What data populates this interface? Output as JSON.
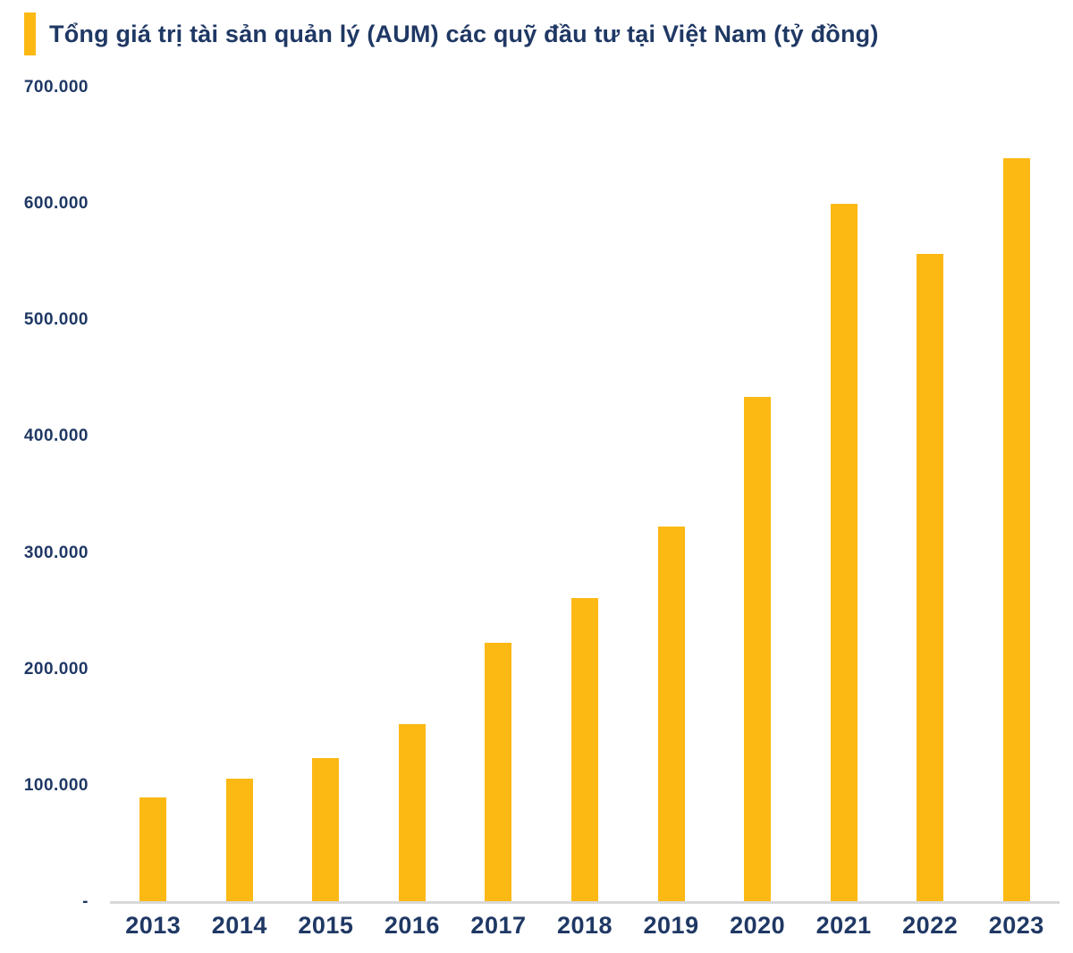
{
  "title": "Tổng giá trị tài sản quản lý (AUM) các quỹ đầu tư tại Việt Nam (tỷ đồng)",
  "colors": {
    "bar": "#FCB813",
    "accent_bar": "#FCB813",
    "text_navy": "#1F3864",
    "axis_line": "#D8D8D8"
  },
  "chart_data": {
    "type": "bar",
    "title": "Tổng giá trị tài sản quản lý (AUM) các quỹ đầu tư tại Việt Nam (tỷ đồng)",
    "categories": [
      "2013",
      "2014",
      "2015",
      "2016",
      "2017",
      "2018",
      "2019",
      "2020",
      "2021",
      "2022",
      "2023"
    ],
    "values": [
      90000,
      106000,
      124000,
      153000,
      223000,
      261000,
      323000,
      434000,
      600000,
      557000,
      639000
    ],
    "xlabel": "",
    "ylabel": "",
    "ylim": [
      0,
      700000
    ],
    "ytick_step": 100000,
    "yticks": [
      {
        "value": 0,
        "label": "-"
      },
      {
        "value": 100000,
        "label": "100.000"
      },
      {
        "value": 200000,
        "label": "200.000"
      },
      {
        "value": 300000,
        "label": "300.000"
      },
      {
        "value": 400000,
        "label": "400.000"
      },
      {
        "value": 500000,
        "label": "500.000"
      },
      {
        "value": 600000,
        "label": "600.000"
      },
      {
        "value": 700000,
        "label": "700.000"
      }
    ],
    "grid": false,
    "legend_position": "none",
    "bar_color": "#FCB813"
  }
}
